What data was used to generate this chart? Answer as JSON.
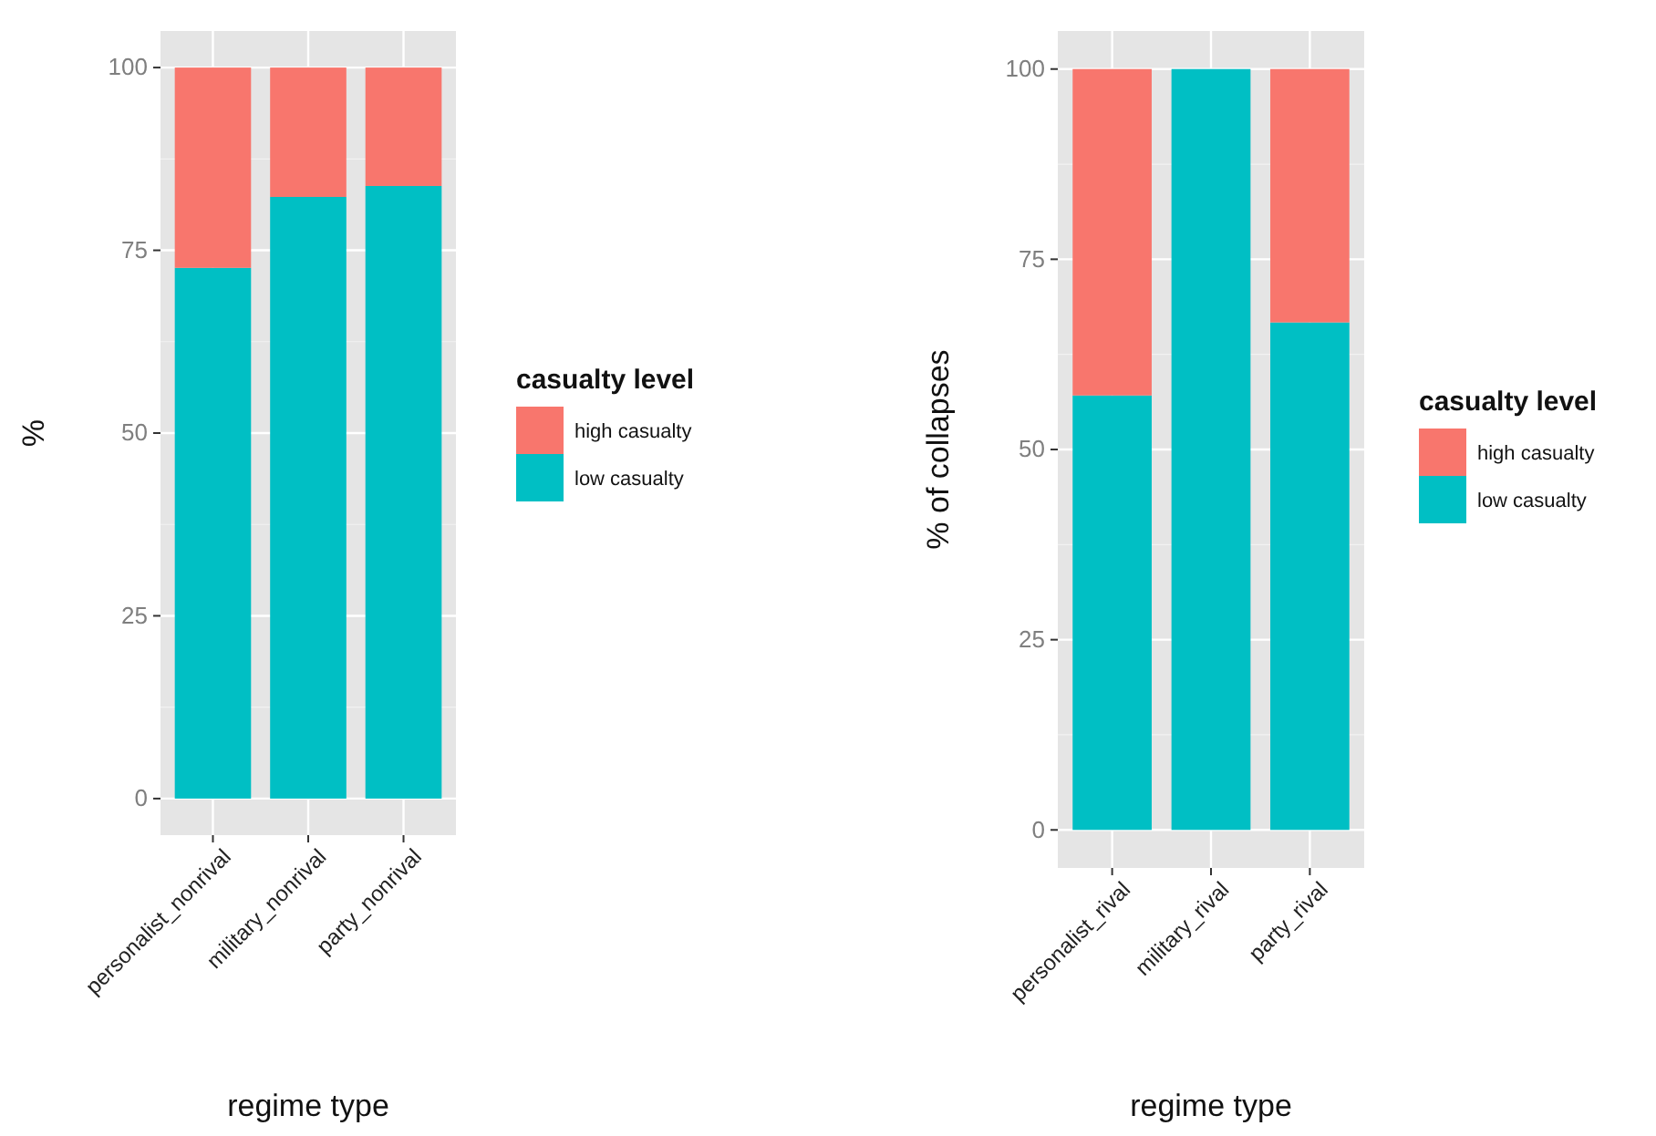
{
  "chart_data": [
    {
      "type": "bar",
      "stacked": true,
      "categories": [
        "personalist_nonrival",
        "military_nonrival",
        "party_nonrival"
      ],
      "xlabel": "regime type",
      "ylabel": "%",
      "legend_title": "casualty level",
      "legend": "right",
      "grid": true,
      "ylim": [
        -5,
        105
      ],
      "yticks": [
        0,
        25,
        50,
        75,
        100
      ],
      "series": [
        {
          "name": "low casualty",
          "color": "#00bfc4",
          "values": [
            72.6,
            82.3,
            83.8
          ]
        },
        {
          "name": "high casualty",
          "color": "#f8766d",
          "values": [
            27.4,
            17.7,
            16.2
          ]
        }
      ]
    },
    {
      "type": "bar",
      "stacked": true,
      "categories": [
        "personalist_rival",
        "military_rival",
        "party_rival"
      ],
      "xlabel": "regime type",
      "ylabel": "% of collapses",
      "legend_title": "casualty level",
      "legend": "right",
      "grid": true,
      "ylim": [
        -5,
        105
      ],
      "yticks": [
        0,
        25,
        50,
        75,
        100
      ],
      "series": [
        {
          "name": "low casualty",
          "color": "#00bfc4",
          "values": [
            57.1,
            100,
            66.7
          ]
        },
        {
          "name": "high casualty",
          "color": "#f8766d",
          "values": [
            42.9,
            0,
            33.3
          ]
        }
      ]
    }
  ]
}
